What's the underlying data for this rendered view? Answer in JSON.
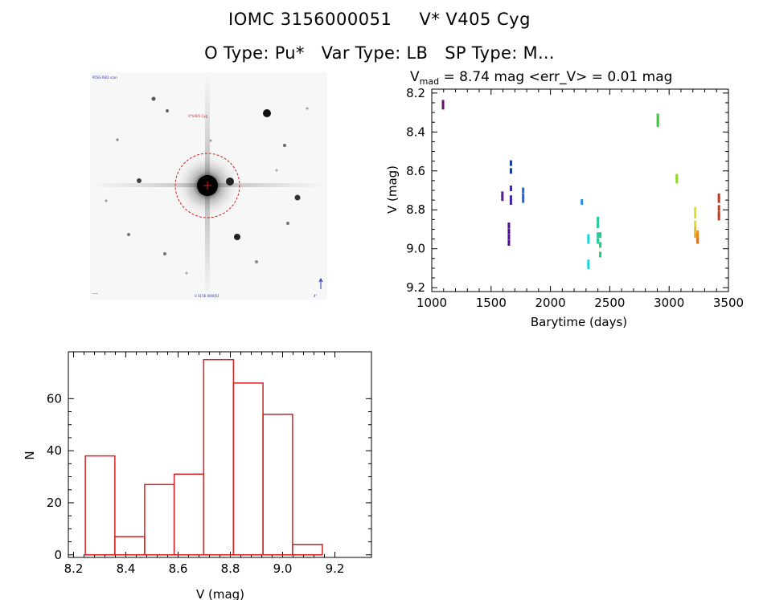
{
  "header": {
    "source_id": "IOMC 3156000051",
    "object_name": "V* V405 Cyg",
    "o_type": "O Type: Pu*",
    "var_type": "Var Type: LB",
    "sp_type": "SP Type: M..."
  },
  "stamp": {
    "top_left_label": "POSS RED scan",
    "top_center_label": "V*V405 Cyg",
    "bottom_center_label": "V  3156 000051",
    "bottom_left_label": "~~",
    "bottom_right_label": "4°",
    "north_arrow": "arrow-up-icon"
  },
  "lightcurve_title": {
    "symbol": "V",
    "subscript": "mad",
    "text": " = 8.74 mag <err_V> = 0.01 mag"
  },
  "chart_data": [
    {
      "type": "scatter",
      "title": "",
      "xlabel": "Barytime (days)",
      "ylabel": "V (mag)",
      "xlim": [
        1000,
        3500
      ],
      "ylim": [
        9.22,
        8.18
      ],
      "y_inverted": true,
      "x_ticks": [
        1000,
        1500,
        2000,
        2500,
        3000,
        3500
      ],
      "y_ticks": [
        8.2,
        8.4,
        8.6,
        8.8,
        9.0,
        9.2
      ],
      "grid": false,
      "points": [
        {
          "x": 1095,
          "y": 8.25,
          "color": "#6b0f6b"
        },
        {
          "x": 1095,
          "y": 8.27,
          "color": "#6b0f6b"
        },
        {
          "x": 1595,
          "y": 8.72,
          "color": "#5a1a9a"
        },
        {
          "x": 1595,
          "y": 8.74,
          "color": "#5a1a9a"
        },
        {
          "x": 1650,
          "y": 8.88,
          "color": "#4a0a90"
        },
        {
          "x": 1650,
          "y": 8.91,
          "color": "#4a0a90"
        },
        {
          "x": 1650,
          "y": 8.94,
          "color": "#4a0a90"
        },
        {
          "x": 1650,
          "y": 8.97,
          "color": "#4a0a90"
        },
        {
          "x": 1667,
          "y": 8.56,
          "color": "#1a3aa0"
        },
        {
          "x": 1667,
          "y": 8.6,
          "color": "#1a3aa0"
        },
        {
          "x": 1667,
          "y": 8.69,
          "color": "#3a2aaa"
        },
        {
          "x": 1667,
          "y": 8.74,
          "color": "#3a2aaa"
        },
        {
          "x": 1667,
          "y": 8.76,
          "color": "#3a2aaa"
        },
        {
          "x": 1770,
          "y": 8.7,
          "color": "#1f6ad8"
        },
        {
          "x": 1770,
          "y": 8.73,
          "color": "#1f6ad8"
        },
        {
          "x": 1770,
          "y": 8.75,
          "color": "#1f6ad8"
        },
        {
          "x": 2265,
          "y": 8.76,
          "color": "#2a8adf"
        },
        {
          "x": 2320,
          "y": 8.94,
          "color": "#1fd5d5"
        },
        {
          "x": 2320,
          "y": 8.96,
          "color": "#1fd5d5"
        },
        {
          "x": 2320,
          "y": 9.07,
          "color": "#1fd5d5"
        },
        {
          "x": 2320,
          "y": 9.09,
          "color": "#1fd5d5"
        },
        {
          "x": 2400,
          "y": 8.85,
          "color": "#22c99a"
        },
        {
          "x": 2400,
          "y": 8.88,
          "color": "#22c99a"
        },
        {
          "x": 2400,
          "y": 8.93,
          "color": "#22c99a"
        },
        {
          "x": 2400,
          "y": 8.96,
          "color": "#22c99a"
        },
        {
          "x": 2420,
          "y": 8.93,
          "color": "#22cc77"
        },
        {
          "x": 2420,
          "y": 8.98,
          "color": "#22cc77"
        },
        {
          "x": 2420,
          "y": 9.03,
          "color": "#22cc77"
        },
        {
          "x": 2905,
          "y": 8.32,
          "color": "#33cc33"
        },
        {
          "x": 2905,
          "y": 8.34,
          "color": "#33cc33"
        },
        {
          "x": 2905,
          "y": 8.36,
          "color": "#33cc33"
        },
        {
          "x": 3065,
          "y": 8.63,
          "color": "#88dd22"
        },
        {
          "x": 3065,
          "y": 8.65,
          "color": "#88dd22"
        },
        {
          "x": 3220,
          "y": 8.8,
          "color": "#d8e020"
        },
        {
          "x": 3220,
          "y": 8.83,
          "color": "#d8e020"
        },
        {
          "x": 3220,
          "y": 8.87,
          "color": "#e8d820"
        },
        {
          "x": 3220,
          "y": 8.9,
          "color": "#e8c020"
        },
        {
          "x": 3220,
          "y": 8.93,
          "color": "#e8b020"
        },
        {
          "x": 3240,
          "y": 8.92,
          "color": "#e89020"
        },
        {
          "x": 3240,
          "y": 8.94,
          "color": "#e88020"
        },
        {
          "x": 3240,
          "y": 8.96,
          "color": "#d87020"
        },
        {
          "x": 3420,
          "y": 8.73,
          "color": "#c83a1a"
        },
        {
          "x": 3420,
          "y": 8.75,
          "color": "#c83a1a"
        },
        {
          "x": 3420,
          "y": 8.79,
          "color": "#c83a1a"
        },
        {
          "x": 3420,
          "y": 8.82,
          "color": "#c83a1a"
        },
        {
          "x": 3420,
          "y": 8.84,
          "color": "#c83a1a"
        }
      ]
    },
    {
      "type": "bar",
      "title": "",
      "xlabel": "V (mag)",
      "ylabel": "N",
      "xlim": [
        8.18,
        9.34
      ],
      "ylim": [
        -1,
        78
      ],
      "x_ticks": [
        8.2,
        8.4,
        8.6,
        8.8,
        9.0,
        9.2
      ],
      "y_ticks": [
        0,
        20,
        40,
        60
      ],
      "grid": false,
      "bar_color": "#d42020",
      "bin_edges": [
        8.245,
        8.358,
        8.472,
        8.585,
        8.698,
        8.812,
        8.925,
        9.038,
        9.152
      ],
      "values": [
        38,
        7,
        27,
        31,
        75,
        66,
        54,
        4
      ]
    }
  ]
}
